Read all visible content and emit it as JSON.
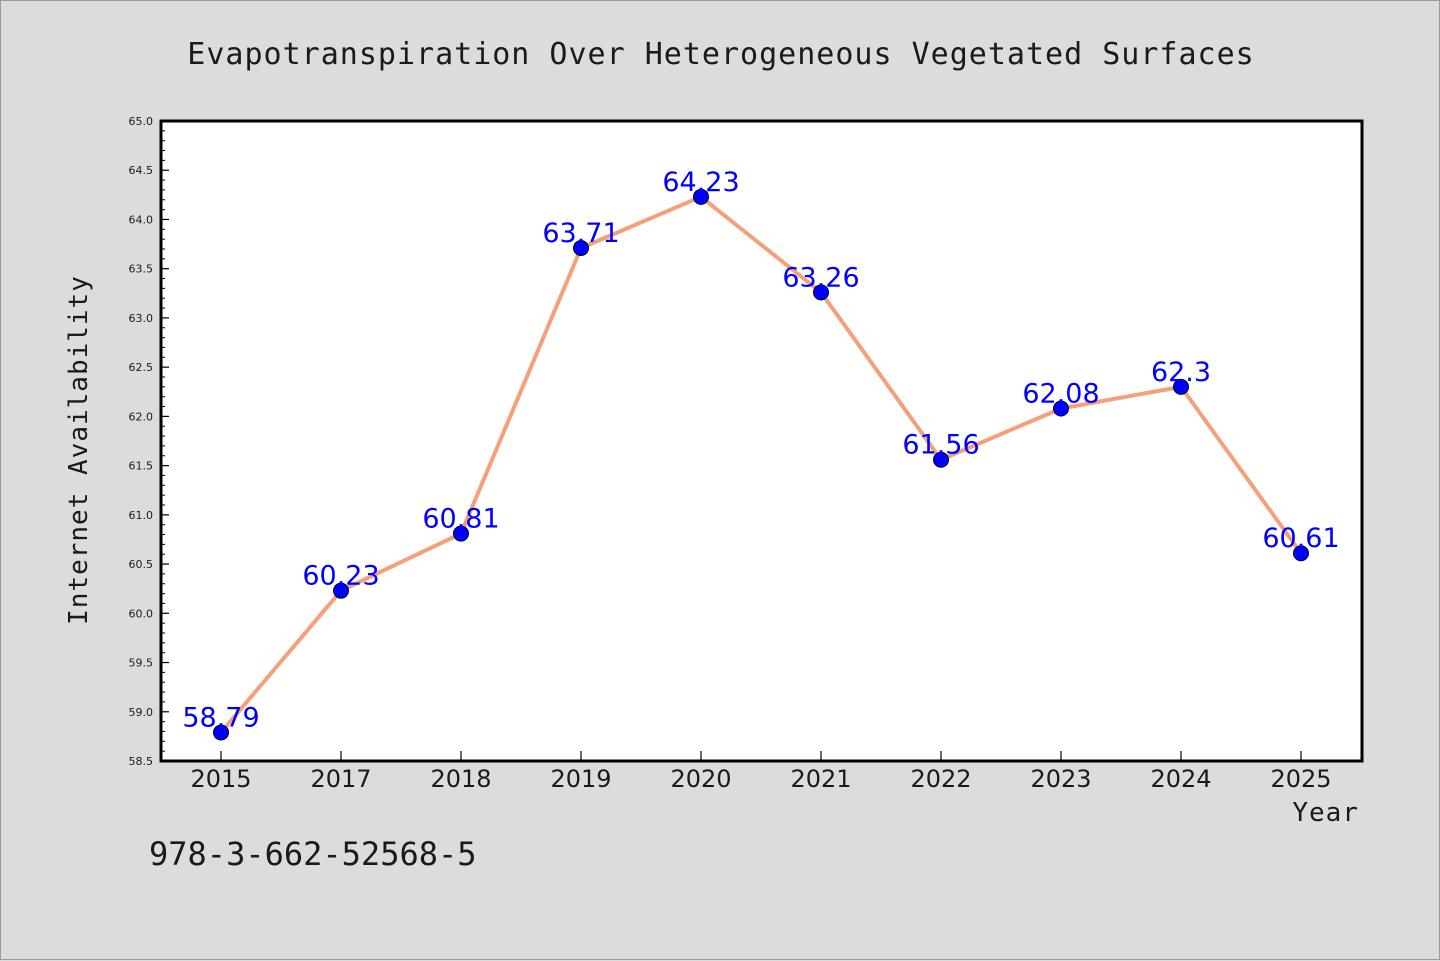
{
  "chart_data": {
    "type": "line",
    "title": "Evapotranspiration Over Heterogeneous Vegetated Surfaces",
    "xlabel": "Year",
    "ylabel": "Internet Availability",
    "categories": [
      "2015",
      "2017",
      "2018",
      "2019",
      "2020",
      "2021",
      "2022",
      "2023",
      "2024",
      "2025"
    ],
    "series": [
      {
        "values": [
          58.79,
          60.23,
          60.81,
          63.71,
          64.23,
          63.26,
          61.56,
          62.08,
          62.3,
          60.61
        ],
        "data_labels": [
          "58.79",
          "60.23",
          "60.81",
          "63.71",
          "64.23",
          "63.26",
          "61.56",
          "62.08",
          "62.3",
          "60.61"
        ],
        "line_color": "#f4a07a",
        "marker_color": "#0000ff"
      }
    ],
    "ylim": [
      58.5,
      65.0
    ],
    "yticks": [
      "58.5",
      "59.0",
      "59.5",
      "60.0",
      "60.5",
      "61.0",
      "61.5",
      "62.0",
      "62.5",
      "63.0",
      "63.5",
      "64.0",
      "64.5",
      "65.0"
    ],
    "grid": false,
    "legend": "none"
  },
  "footer_text": "978-3-662-52568-5",
  "colors": {
    "background": "#dcdcdc",
    "plot_background": "#ffffff",
    "line": "#f4a07a",
    "marker": "#0000ff",
    "data_label": "#0000ff"
  }
}
